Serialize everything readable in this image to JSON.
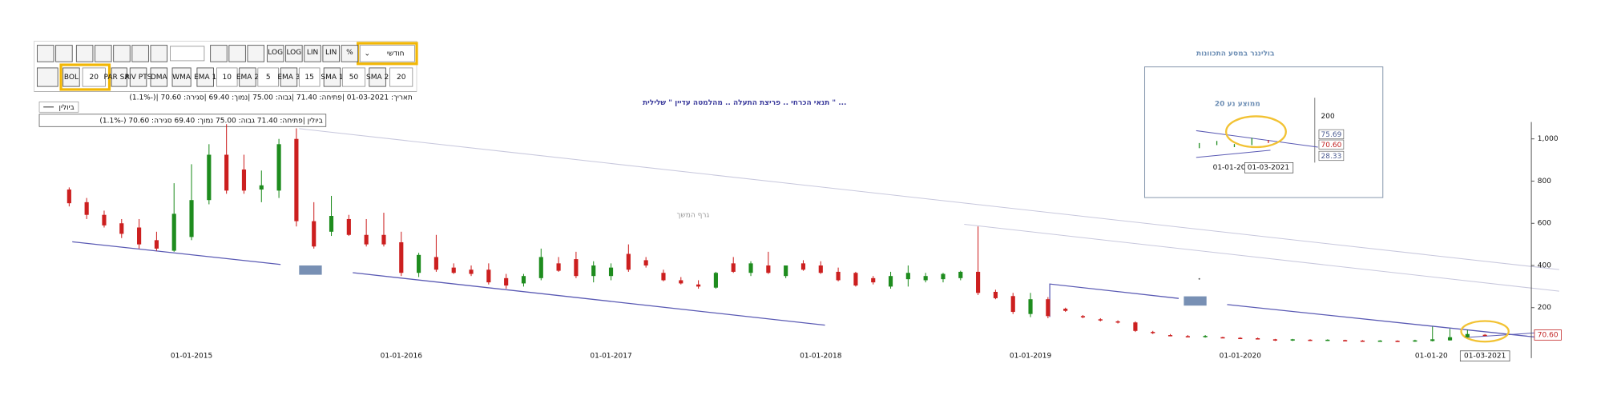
{
  "toolbar": {
    "period": "חודשי",
    "row1": [
      "LOG",
      "LOG",
      "LIN",
      "LIN",
      "%"
    ],
    "row2": [
      "BOL",
      "20",
      "PAR SAR",
      "PIV PTS",
      "DMA",
      "WMA",
      "EMA 1",
      "10",
      "EMA 2",
      "5",
      "EMA 3",
      "15",
      "SMA 1",
      "50",
      "SMA 2",
      "20"
    ]
  },
  "info": {
    "line": "תאריך: 01-03-2021 |פתיחה: 71.40 |גבוה: 75.00 |נמוך: 69.40 |סגירה: 70.60 |(-1.1%)",
    "legend": "ביולין",
    "box": "ביולין |פתיחה: 71.40  גבוה: 75.00  נמוך: 69.40  סגירה: 70.60  (-1.1%)"
  },
  "inset": {
    "title": "בולינגר במסע התכוונות",
    "subtitle": "ממוצע נע 20",
    "tick": "200",
    "upper": "75.69",
    "close": "70.60",
    "lower": "28.33",
    "date1": "01-01-20",
    "date2": "01-03-2021"
  },
  "chart_data": {
    "type": "candlestick",
    "annotations": [
      "תנאי הכרחי ..  פריצת התעלה  ..  מהלמטה עדיין  \" שלילית \"  ...",
      "גרף המשך"
    ],
    "categories": [
      null,
      null,
      null,
      null,
      null,
      null,
      null,
      "01-01-2015",
      null,
      null,
      null,
      null,
      null,
      null,
      null,
      null,
      null,
      null,
      null,
      "01-01-2016",
      null,
      null,
      null,
      null,
      null,
      null,
      null,
      null,
      null,
      null,
      null,
      "01-01-2017",
      null,
      null,
      null,
      null,
      null,
      null,
      null,
      null,
      null,
      null,
      null,
      "01-01-2018",
      null,
      null,
      null,
      null,
      null,
      null,
      null,
      null,
      null,
      null,
      null,
      "01-01-2019",
      null,
      null,
      null,
      null,
      null,
      null,
      null,
      null,
      null,
      null,
      null,
      "01-01-2020",
      null,
      null,
      null,
      null,
      null,
      null,
      null,
      null,
      null,
      null,
      null,
      "01-01-20",
      null,
      "01-03-2021"
    ],
    "series": [
      {
        "name": "ביולין",
        "up_color": "#1e8c1e",
        "down_color": "#cc1f1f",
        "open": [
          760,
          700,
          640,
          600,
          580,
          520,
          470,
          535,
          710,
          925,
          855,
          760,
          755,
          1000,
          610,
          560,
          620,
          545,
          545,
          510,
          365,
          440,
          390,
          380,
          380,
          340,
          315,
          340,
          410,
          430,
          350,
          350,
          455,
          425,
          365,
          330,
          310,
          295,
          410,
          365,
          400,
          350,
          410,
          400,
          370,
          365,
          340,
          300,
          335,
          330,
          335,
          340,
          370,
          275,
          255,
          170,
          240,
          195,
          160,
          145,
          135,
          130,
          85,
          70,
          65,
          60,
          60,
          57,
          55,
          50,
          44,
          48,
          43,
          46,
          44,
          40,
          43,
          40,
          42,
          45,
          60,
          71.4
        ],
        "high": [
          770,
          720,
          660,
          620,
          620,
          560,
          790,
          880,
          975,
          1070,
          925,
          850,
          1000,
          1050,
          700,
          730,
          640,
          620,
          650,
          560,
          460,
          545,
          410,
          400,
          410,
          360,
          360,
          480,
          440,
          465,
          420,
          410,
          500,
          440,
          380,
          345,
          330,
          370,
          440,
          420,
          465,
          400,
          425,
          420,
          390,
          370,
          350,
          370,
          400,
          365,
          365,
          375,
          585,
          285,
          270,
          270,
          250,
          200,
          165,
          150,
          140,
          135,
          90,
          75,
          70,
          70,
          62,
          60,
          58,
          52,
          52,
          50,
          50,
          48,
          46,
          46,
          45,
          48,
          110,
          100,
          95,
          75
        ],
        "low": [
          680,
          620,
          580,
          530,
          480,
          470,
          465,
          520,
          690,
          740,
          740,
          700,
          720,
          585,
          480,
          540,
          540,
          490,
          490,
          350,
          345,
          370,
          360,
          350,
          310,
          290,
          300,
          330,
          370,
          340,
          320,
          330,
          370,
          390,
          325,
          310,
          290,
          290,
          365,
          350,
          360,
          340,
          375,
          360,
          325,
          300,
          310,
          290,
          300,
          320,
          320,
          330,
          260,
          240,
          170,
          155,
          150,
          180,
          150,
          135,
          125,
          85,
          75,
          65,
          60,
          58,
          55,
          52,
          50,
          42,
          42,
          42,
          42,
          40,
          38,
          38,
          38,
          38,
          40,
          44,
          58,
          69.4
        ],
        "close": [
          695,
          640,
          590,
          550,
          500,
          480,
          645,
          710,
          925,
          755,
          755,
          780,
          975,
          610,
          490,
          635,
          545,
          500,
          500,
          365,
          450,
          380,
          365,
          360,
          320,
          305,
          350,
          440,
          375,
          350,
          400,
          390,
          380,
          400,
          330,
          315,
          300,
          365,
          370,
          410,
          365,
          400,
          380,
          365,
          330,
          305,
          320,
          350,
          365,
          350,
          360,
          370,
          270,
          245,
          180,
          240,
          160,
          185,
          155,
          140,
          130,
          90,
          80,
          68,
          62,
          66,
          58,
          54,
          52,
          44,
          50,
          44,
          48,
          42,
          40,
          44,
          40,
          45,
          50,
          60,
          75,
          70.6
        ]
      }
    ],
    "price_marker": {
      "value": 70.6,
      "label": "70.60"
    },
    "ylim": [
      0,
      1080
    ],
    "yticks": [
      200,
      400,
      600,
      800,
      {
        "value": 1000,
        "label": "1,000"
      }
    ],
    "grid": false
  }
}
